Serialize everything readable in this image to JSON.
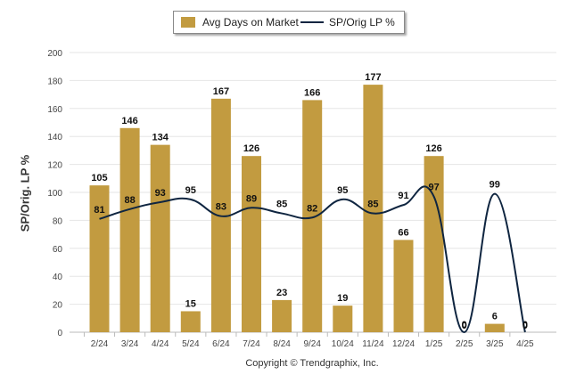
{
  "legend": {
    "bar_label": "Avg Days on Market",
    "line_label": "SP/Orig LP %"
  },
  "footer": {
    "copyright": "Copyright © Trendgraphix, Inc."
  },
  "chart_data": {
    "type": "bar",
    "ylabel": "SP/Orig. LP %",
    "xlabel": "",
    "title": "",
    "ylim": [
      0,
      200
    ],
    "yticks": [
      "0",
      "20",
      "40",
      "60",
      "80",
      "100",
      "120",
      "140",
      "160",
      "180",
      "200"
    ],
    "grid": true,
    "legend_position": "top-center",
    "categories": [
      "2/24",
      "3/24",
      "4/24",
      "5/24",
      "6/24",
      "7/24",
      "8/24",
      "9/24",
      "10/24",
      "11/24",
      "12/24",
      "1/25",
      "2/25",
      "3/25",
      "4/25"
    ],
    "series": [
      {
        "name": "Avg Days on Market",
        "type": "bar",
        "color": "#c29b40",
        "values": [
          105,
          146,
          134,
          15,
          167,
          126,
          23,
          166,
          19,
          177,
          66,
          126,
          0,
          6,
          0
        ]
      },
      {
        "name": "SP/Orig LP %",
        "type": "line",
        "color": "#0f2540",
        "values": [
          81,
          88,
          93,
          95,
          83,
          89,
          85,
          82,
          95,
          85,
          91,
          97,
          0,
          99,
          0
        ]
      }
    ]
  }
}
